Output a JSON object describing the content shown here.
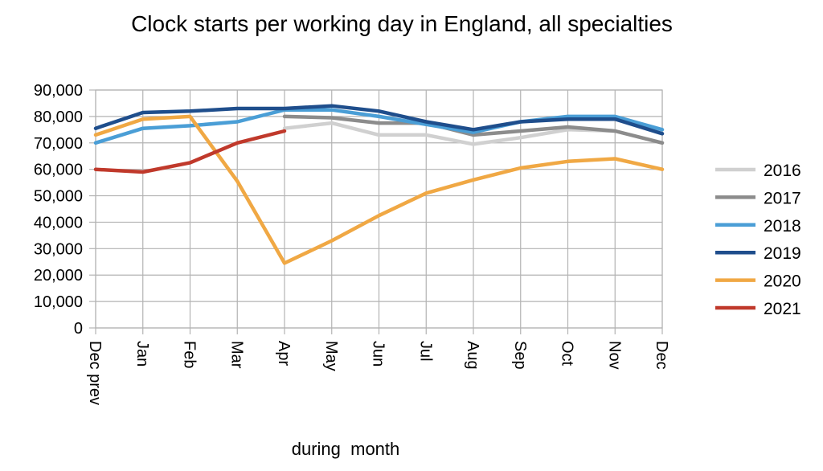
{
  "chart_data": {
    "type": "line",
    "title": "Clock starts per working day in England, all specialties",
    "xlabel": "during  month",
    "ylabel": "",
    "ylim": [
      0,
      90000
    ],
    "yticks": [
      "90,000",
      "80,000",
      "70,000",
      "60,000",
      "50,000",
      "40,000",
      "30,000",
      "20,000",
      "10,000",
      "0"
    ],
    "ytick_values": [
      90000,
      80000,
      70000,
      60000,
      50000,
      40000,
      30000,
      20000,
      10000,
      0
    ],
    "categories": [
      "Dec prev",
      "Jan",
      "Feb",
      "Mar",
      "Apr",
      "May",
      "Jun",
      "Jul",
      "Aug",
      "Sep",
      "Oct",
      "Nov",
      "Dec"
    ],
    "grid": true,
    "legend_position": "right",
    "series": [
      {
        "name": "2016",
        "color": "#d0d0d0",
        "values": [
          null,
          null,
          null,
          null,
          75500,
          77500,
          73000,
          73000,
          69500,
          72000,
          75000,
          74500,
          70000
        ]
      },
      {
        "name": "2017",
        "color": "#8c8c8c",
        "values": [
          null,
          null,
          null,
          null,
          80000,
          79500,
          77500,
          77500,
          73000,
          74500,
          76000,
          74500,
          70000
        ]
      },
      {
        "name": "2018",
        "color": "#4a9ed6",
        "values": [
          70000,
          75500,
          76500,
          78000,
          82500,
          82500,
          80000,
          77000,
          74000,
          78000,
          80000,
          80000,
          75000
        ]
      },
      {
        "name": "2019",
        "color": "#1f4e8c",
        "values": [
          75500,
          81500,
          82000,
          83000,
          83000,
          84000,
          82000,
          78000,
          75000,
          78000,
          79000,
          79000,
          73500
        ]
      },
      {
        "name": "2020",
        "color": "#f0a844",
        "values": [
          73000,
          79000,
          80000,
          55500,
          24500,
          33000,
          42500,
          51000,
          56000,
          60500,
          63000,
          64000,
          60000
        ]
      },
      {
        "name": "2021",
        "color": "#c0392b",
        "values": [
          60000,
          59000,
          62500,
          70000,
          74500,
          null,
          null,
          null,
          null,
          null,
          null,
          null,
          null
        ]
      }
    ]
  }
}
